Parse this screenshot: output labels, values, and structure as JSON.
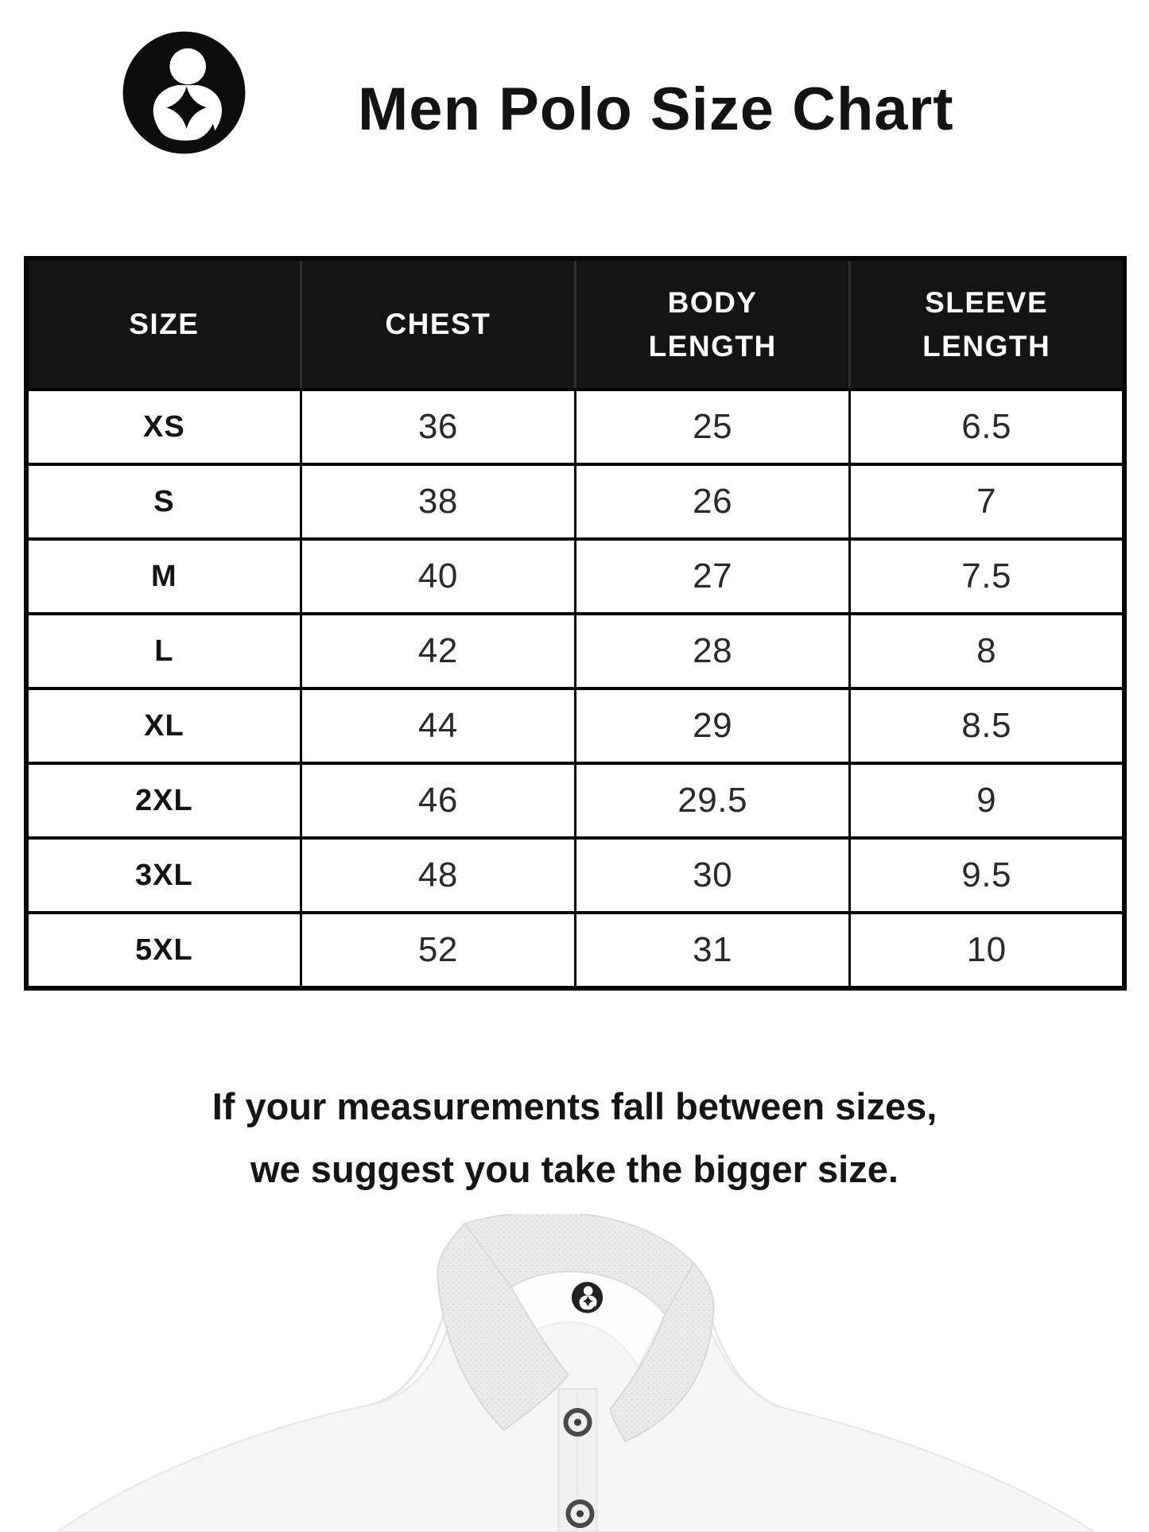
{
  "header": {
    "title": "Men Polo Size Chart",
    "logo_icon": "mother-and-child-brand-mark"
  },
  "table": {
    "columns": [
      {
        "id": "size",
        "lines": [
          "SIZE"
        ]
      },
      {
        "id": "chest",
        "lines": [
          "CHEST"
        ]
      },
      {
        "id": "body_length",
        "lines": [
          "BODY",
          "LENGTH"
        ]
      },
      {
        "id": "sleeve_length",
        "lines": [
          "SLEEVE",
          "LENGTH"
        ]
      }
    ],
    "rows": [
      {
        "size": "XS",
        "chest": "36",
        "body_length": "25",
        "sleeve_length": "6.5"
      },
      {
        "size": "S",
        "chest": "38",
        "body_length": "26",
        "sleeve_length": "7"
      },
      {
        "size": "M",
        "chest": "40",
        "body_length": "27",
        "sleeve_length": "7.5"
      },
      {
        "size": "L",
        "chest": "42",
        "body_length": "28",
        "sleeve_length": "8"
      },
      {
        "size": "XL",
        "chest": "44",
        "body_length": "29",
        "sleeve_length": "8.5"
      },
      {
        "size": "2XL",
        "chest": "46",
        "body_length": "29.5",
        "sleeve_length": "9"
      },
      {
        "size": "3XL",
        "chest": "48",
        "body_length": "30",
        "sleeve_length": "9.5"
      },
      {
        "size": "5XL",
        "chest": "52",
        "body_length": "31",
        "sleeve_length": "10"
      }
    ]
  },
  "note": {
    "line1": "If your measurements fall between sizes,",
    "line2": "we suggest you take the bigger size."
  },
  "product_image": {
    "subject": "white polo shirt collar with brand logo label",
    "collar_logo_icon": "mother-and-child-brand-mark"
  },
  "colors": {
    "page_bg": "#ffffff",
    "header_bg": "#141414",
    "table_border": "#060606",
    "text": "#131313",
    "shirt_body": "#f6f6f6",
    "shirt_collar": "#ebebeb"
  },
  "chart_data": {
    "type": "table",
    "title": "Men Polo Size Chart",
    "columns": [
      "SIZE",
      "CHEST",
      "BODY LENGTH",
      "SLEEVE LENGTH"
    ],
    "rows": [
      [
        "XS",
        36,
        25,
        6.5
      ],
      [
        "S",
        38,
        26,
        7
      ],
      [
        "M",
        40,
        27,
        7.5
      ],
      [
        "L",
        42,
        28,
        8
      ],
      [
        "XL",
        44,
        29,
        8.5
      ],
      [
        "2XL",
        46,
        29.5,
        9
      ],
      [
        "3XL",
        48,
        30,
        9.5
      ],
      [
        "5XL",
        52,
        31,
        10
      ]
    ]
  }
}
